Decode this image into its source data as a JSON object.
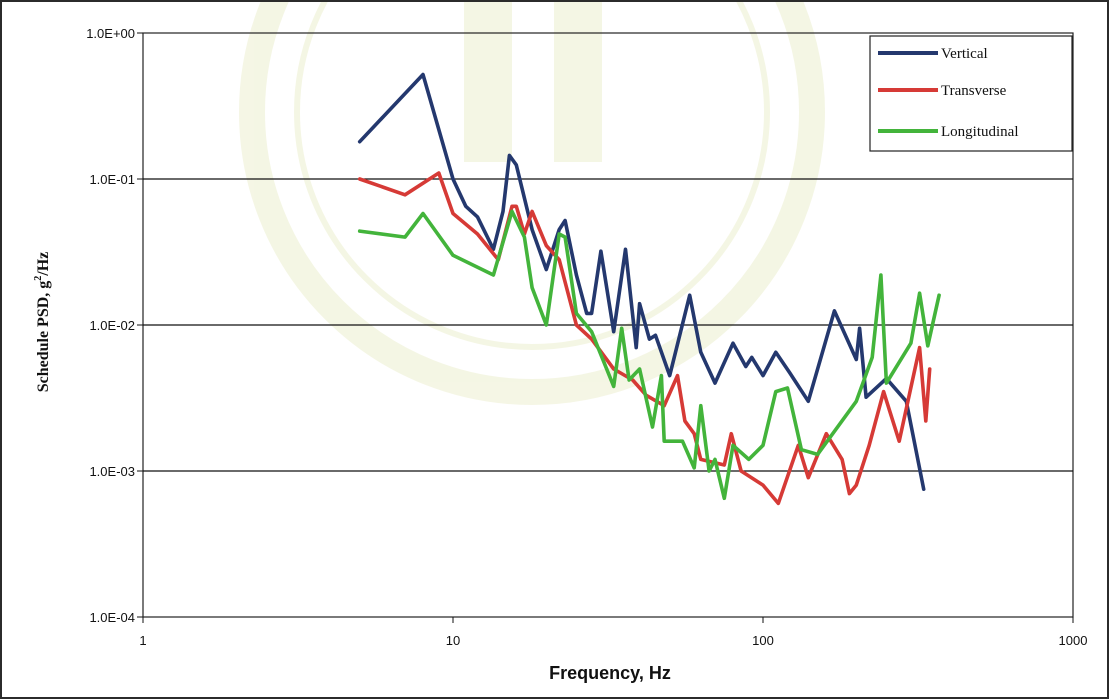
{
  "chart_data": {
    "type": "line",
    "xscale": "log",
    "yscale": "log",
    "xlim": [
      1,
      1000
    ],
    "ylim": [
      0.0001,
      1
    ],
    "x_ticks": [
      {
        "value": 1,
        "label": "1"
      },
      {
        "value": 10,
        "label": "10"
      },
      {
        "value": 100,
        "label": "100"
      },
      {
        "value": 1000,
        "label": "1000"
      }
    ],
    "y_ticks": [
      {
        "value": 1,
        "label": "1.0E+00"
      },
      {
        "value": 0.1,
        "label": "1.0E-01"
      },
      {
        "value": 0.01,
        "label": "1.0E-02"
      },
      {
        "value": 0.001,
        "label": "1.0E-03"
      },
      {
        "value": 0.0001,
        "label": "1.0E-04"
      }
    ],
    "xlabel": "Frequency, Hz",
    "ylabel_main": "Schedule PSD, g",
    "ylabel_sup": "2",
    "ylabel_tail": "/Hz",
    "grid": "horizontal",
    "legend_position": "top-right",
    "series": [
      {
        "name": "Vertical",
        "color": "#24386e",
        "points": [
          [
            5,
            0.18
          ],
          [
            8,
            0.52
          ],
          [
            10,
            0.1
          ],
          [
            11,
            0.065
          ],
          [
            12,
            0.055
          ],
          [
            13.5,
            0.033
          ],
          [
            14.5,
            0.06
          ],
          [
            15.2,
            0.145
          ],
          [
            16,
            0.125
          ],
          [
            18,
            0.045
          ],
          [
            20,
            0.024
          ],
          [
            22,
            0.045
          ],
          [
            23,
            0.052
          ],
          [
            25,
            0.022
          ],
          [
            27,
            0.012
          ],
          [
            28,
            0.012
          ],
          [
            30,
            0.032
          ],
          [
            33,
            0.009
          ],
          [
            36,
            0.033
          ],
          [
            39,
            0.007
          ],
          [
            40,
            0.014
          ],
          [
            43,
            0.008
          ],
          [
            45,
            0.0085
          ],
          [
            50,
            0.0045
          ],
          [
            58,
            0.016
          ],
          [
            63,
            0.0065
          ],
          [
            70,
            0.004
          ],
          [
            80,
            0.0075
          ],
          [
            88,
            0.0052
          ],
          [
            92,
            0.006
          ],
          [
            100,
            0.0045
          ],
          [
            110,
            0.0065
          ],
          [
            122,
            0.0047
          ],
          [
            140,
            0.003
          ],
          [
            170,
            0.0125
          ],
          [
            200,
            0.0058
          ],
          [
            205,
            0.0095
          ],
          [
            215,
            0.0032
          ],
          [
            250,
            0.0043
          ],
          [
            290,
            0.003
          ],
          [
            330,
            0.00075
          ]
        ]
      },
      {
        "name": "Transverse",
        "color": "#d63a36",
        "points": [
          [
            5,
            0.1
          ],
          [
            7,
            0.078
          ],
          [
            9,
            0.11
          ],
          [
            10,
            0.058
          ],
          [
            12,
            0.042
          ],
          [
            14,
            0.028
          ],
          [
            15.5,
            0.065
          ],
          [
            16,
            0.065
          ],
          [
            17,
            0.042
          ],
          [
            18,
            0.06
          ],
          [
            20,
            0.035
          ],
          [
            22,
            0.028
          ],
          [
            25,
            0.01
          ],
          [
            28,
            0.008
          ],
          [
            33,
            0.005
          ],
          [
            38,
            0.0042
          ],
          [
            42,
            0.0033
          ],
          [
            48,
            0.0028
          ],
          [
            53,
            0.0045
          ],
          [
            56,
            0.0022
          ],
          [
            60,
            0.0018
          ],
          [
            63,
            0.0012
          ],
          [
            75,
            0.0011
          ],
          [
            79,
            0.0018
          ],
          [
            85,
            0.001
          ],
          [
            100,
            0.0008
          ],
          [
            112,
            0.0006
          ],
          [
            130,
            0.0015
          ],
          [
            140,
            0.0009
          ],
          [
            160,
            0.0018
          ],
          [
            180,
            0.0012
          ],
          [
            190,
            0.0007
          ],
          [
            200,
            0.0008
          ],
          [
            220,
            0.0015
          ],
          [
            245,
            0.0035
          ],
          [
            275,
            0.0016
          ],
          [
            320,
            0.007
          ],
          [
            335,
            0.0022
          ],
          [
            345,
            0.005
          ]
        ]
      },
      {
        "name": "Longitudinal",
        "color": "#43b43b",
        "points": [
          [
            5,
            0.044
          ],
          [
            7,
            0.04
          ],
          [
            8,
            0.058
          ],
          [
            10,
            0.03
          ],
          [
            13.5,
            0.022
          ],
          [
            15.5,
            0.06
          ],
          [
            17,
            0.04
          ],
          [
            18,
            0.018
          ],
          [
            20,
            0.01
          ],
          [
            22,
            0.042
          ],
          [
            23,
            0.04
          ],
          [
            25,
            0.012
          ],
          [
            28,
            0.009
          ],
          [
            33,
            0.0038
          ],
          [
            35,
            0.0095
          ],
          [
            37,
            0.0042
          ],
          [
            40,
            0.005
          ],
          [
            44,
            0.002
          ],
          [
            47,
            0.0045
          ],
          [
            48,
            0.0016
          ],
          [
            55,
            0.0016
          ],
          [
            60,
            0.00105
          ],
          [
            63,
            0.0028
          ],
          [
            67,
            0.001
          ],
          [
            70,
            0.0012
          ],
          [
            75,
            0.00065
          ],
          [
            80,
            0.0015
          ],
          [
            90,
            0.0012
          ],
          [
            100,
            0.0015
          ],
          [
            110,
            0.0035
          ],
          [
            120,
            0.0037
          ],
          [
            133,
            0.0014
          ],
          [
            150,
            0.0013
          ],
          [
            200,
            0.003
          ],
          [
            225,
            0.006
          ],
          [
            240,
            0.022
          ],
          [
            250,
            0.004
          ],
          [
            300,
            0.0075
          ],
          [
            320,
            0.0165
          ],
          [
            340,
            0.0072
          ],
          [
            370,
            0.016
          ]
        ]
      }
    ]
  }
}
